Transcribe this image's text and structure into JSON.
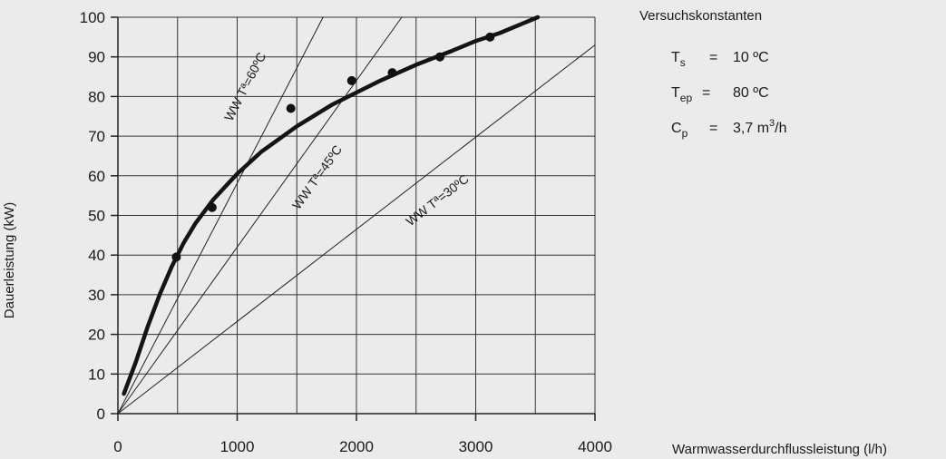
{
  "chart_data": {
    "type": "line",
    "xlabel": "Warmwasserdurchflussleistung (l/h)",
    "ylabel": "Dauerleistung (kW)",
    "xlim": [
      0,
      4000
    ],
    "ylim": [
      0,
      100
    ],
    "x_ticks": [
      0,
      1000,
      2000,
      3000,
      4000
    ],
    "y_ticks": [
      0,
      10,
      20,
      30,
      40,
      50,
      60,
      70,
      80,
      90,
      100
    ],
    "grid": true,
    "x_grid_step": 500,
    "y_grid_step": 10,
    "series": [
      {
        "kind": "curve",
        "x": [
          50,
          150,
          250,
          350,
          450,
          550,
          650,
          800,
          1000,
          1200,
          1500,
          1800,
          2000,
          2200,
          2500,
          2800,
          3000,
          3200,
          3400,
          3520
        ],
        "y": [
          5,
          13,
          22,
          30,
          37,
          43,
          48,
          54,
          60.5,
          66,
          72.5,
          78,
          81,
          84,
          88,
          91.5,
          94,
          96,
          98.5,
          100
        ]
      },
      {
        "kind": "points",
        "x": [
          490,
          790,
          1450,
          1960,
          2300,
          2700,
          3120
        ],
        "y": [
          39.5,
          52,
          77,
          84,
          86,
          90,
          95
        ]
      },
      {
        "kind": "reference",
        "label": "WW Tª=60ºC",
        "x": [
          0,
          1720
        ],
        "y": [
          0,
          100
        ]
      },
      {
        "kind": "reference",
        "label": "WW Tª=45ºC",
        "x": [
          0,
          2380
        ],
        "y": [
          0,
          100
        ]
      },
      {
        "kind": "reference",
        "label": "WW Tª=30ºC",
        "x": [
          0,
          4000
        ],
        "y": [
          0,
          93
        ]
      }
    ],
    "annotations": [
      {
        "text": "WW Tª=60ºC",
        "at_x": 1100,
        "at_y": 82,
        "series": 2
      },
      {
        "text": "WW Tª=45ºC",
        "at_x": 1700,
        "at_y": 59,
        "series": 3
      },
      {
        "text": "WW Tª=30ºC",
        "at_x": 2700,
        "at_y": 53,
        "series": 4
      }
    ]
  },
  "legend": {
    "title": "Versuchskonstanten",
    "rows": [
      {
        "symbol": "T",
        "sub": "s",
        "eq": "=",
        "value": "10 ºC"
      },
      {
        "symbol": "T",
        "sub": "ep",
        "eq": "=",
        "value": "80 ºC"
      },
      {
        "symbol": "C",
        "sub": "p",
        "eq": "=",
        "value": "3,7 m",
        "sup": "3",
        "tail": "/h"
      }
    ]
  }
}
